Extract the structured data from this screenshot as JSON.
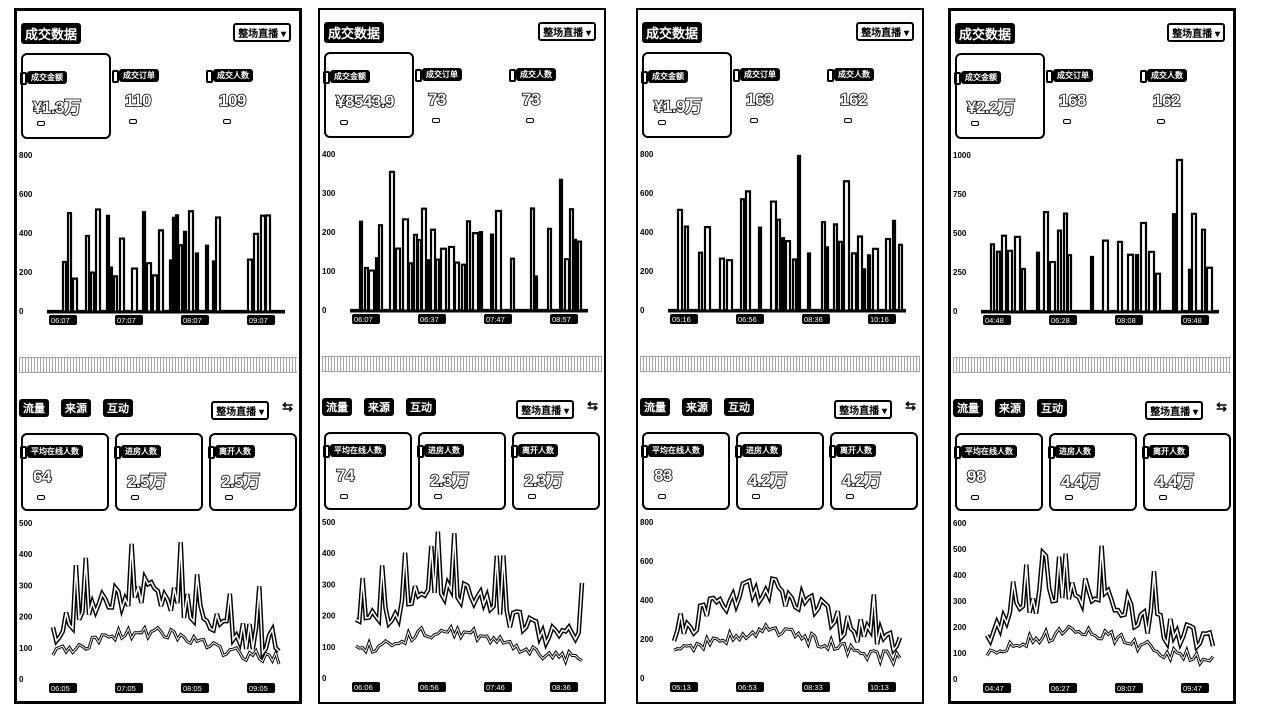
{
  "panels": [
    {
      "title": "成交数据",
      "dropdown": "整场直播",
      "metrics": [
        {
          "label": "成交金额",
          "value": "¥1.3万"
        },
        {
          "label": "成交订单",
          "value": "110"
        },
        {
          "label": "成交人数",
          "value": "109"
        }
      ],
      "sales_chart": {
        "y_ticks": [
          "800",
          "600",
          "400",
          "200",
          "0"
        ],
        "x_ticks": [
          "06:07",
          "07:07",
          "08:07",
          "09:07"
        ]
      },
      "tabs": [
        "流量",
        "来源",
        "互动"
      ],
      "dropdown2": "整场直播",
      "metrics2": [
        {
          "label": "平均在线人数",
          "value": "64"
        },
        {
          "label": "进房人数",
          "value": "2.5万"
        },
        {
          "label": "离开人数",
          "value": "2.5万"
        }
      ],
      "traffic_chart": {
        "y_ticks": [
          "500",
          "400",
          "300",
          "200",
          "100",
          "0"
        ],
        "x_ticks": [
          "06:05",
          "07:05",
          "08:05",
          "09:05"
        ]
      }
    },
    {
      "title": "成交数据",
      "dropdown": "整场直播",
      "metrics": [
        {
          "label": "成交金额",
          "value": "¥8543.9"
        },
        {
          "label": "成交订单",
          "value": "73"
        },
        {
          "label": "成交人数",
          "value": "73"
        }
      ],
      "sales_chart": {
        "y_ticks": [
          "400",
          "300",
          "200",
          "100",
          "0"
        ],
        "x_ticks": [
          "06:07",
          "06:37",
          "07:47",
          "08:57"
        ]
      },
      "tabs": [
        "流量",
        "来源",
        "互动"
      ],
      "dropdown2": "整场直播",
      "metrics2": [
        {
          "label": "平均在线人数",
          "value": "74"
        },
        {
          "label": "进房人数",
          "value": "2.3万"
        },
        {
          "label": "离开人数",
          "value": "2.3万"
        }
      ],
      "traffic_chart": {
        "y_ticks": [
          "500",
          "400",
          "300",
          "200",
          "100",
          "0"
        ],
        "x_ticks": [
          "06:06",
          "06:56",
          "07:46",
          "08:36"
        ]
      }
    },
    {
      "title": "成交数据",
      "dropdown": "整场直播",
      "metrics": [
        {
          "label": "成交金额",
          "value": "¥1.9万"
        },
        {
          "label": "成交订单",
          "value": "163"
        },
        {
          "label": "成交人数",
          "value": "162"
        }
      ],
      "sales_chart": {
        "y_ticks": [
          "800",
          "600",
          "400",
          "200",
          "0"
        ],
        "x_ticks": [
          "05:16",
          "06:56",
          "08:36",
          "10:16"
        ]
      },
      "tabs": [
        "流量",
        "来源",
        "互动"
      ],
      "dropdown2": "整场直播",
      "metrics2": [
        {
          "label": "平均在线人数",
          "value": "83"
        },
        {
          "label": "进房人数",
          "value": "4.2万"
        },
        {
          "label": "离开人数",
          "value": "4.2万"
        }
      ],
      "traffic_chart": {
        "y_ticks": [
          "800",
          "600",
          "400",
          "200",
          "0"
        ],
        "x_ticks": [
          "05:13",
          "06:53",
          "08:33",
          "10:13"
        ]
      }
    },
    {
      "title": "成交数据",
      "dropdown": "整场直播",
      "metrics": [
        {
          "label": "成交金额",
          "value": "¥2.2万"
        },
        {
          "label": "成交订单",
          "value": "168"
        },
        {
          "label": "成交人数",
          "value": "162"
        }
      ],
      "sales_chart": {
        "y_ticks": [
          "1000",
          "750",
          "500",
          "250",
          "0"
        ],
        "x_ticks": [
          "04:48",
          "06:28",
          "08:08",
          "09:48"
        ]
      },
      "tabs": [
        "流量",
        "来源",
        "互动"
      ],
      "dropdown2": "整场直播",
      "metrics2": [
        {
          "label": "平均在线人数",
          "value": "98"
        },
        {
          "label": "进房人数",
          "value": "4.4万"
        },
        {
          "label": "离开人数",
          "value": "4.4万"
        }
      ],
      "traffic_chart": {
        "y_ticks": [
          "600",
          "500",
          "400",
          "300",
          "200",
          "100",
          "0"
        ],
        "x_ticks": [
          "04:47",
          "06:27",
          "08:07",
          "09:47"
        ]
      }
    }
  ]
}
